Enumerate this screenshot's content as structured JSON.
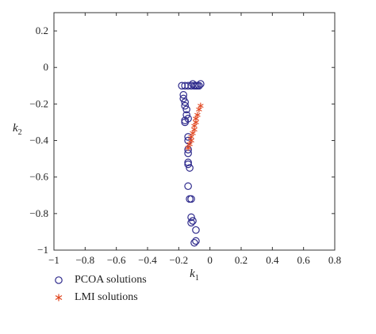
{
  "chart_data": {
    "type": "scatter",
    "xlabel_main": "k",
    "xlabel_sub": "1",
    "ylabel_main": "k",
    "ylabel_sub": "2",
    "xlim": [
      -1,
      0.8
    ],
    "ylim": [
      -1,
      0.3
    ],
    "x_ticks": [
      -1,
      -0.8,
      -0.6,
      -0.4,
      -0.2,
      0,
      0.2,
      0.4,
      0.6,
      0.8
    ],
    "x_tick_labels": [
      "−1",
      "−0.8",
      "−0.6",
      "−0.4",
      "−0.2",
      "0",
      "0.2",
      "0.4",
      "0.6",
      "0.8"
    ],
    "y_ticks": [
      0.2,
      0,
      -0.2,
      -0.4,
      -0.6,
      -0.8,
      -1
    ],
    "y_tick_labels": [
      "0.2",
      "0",
      "−0.2",
      "−0.4",
      "−0.6",
      "−0.8",
      "−1"
    ],
    "grid": false,
    "legend_position": "below",
    "series": [
      {
        "name": "PCOA solutions",
        "marker": "circle",
        "color": "#2e2a8c",
        "points": [
          [
            -0.18,
            -0.1
          ],
          [
            -0.16,
            -0.1
          ],
          [
            -0.14,
            -0.1
          ],
          [
            -0.12,
            -0.1
          ],
          [
            -0.11,
            -0.09
          ],
          [
            -0.1,
            -0.1
          ],
          [
            -0.09,
            -0.1
          ],
          [
            -0.08,
            -0.1
          ],
          [
            -0.07,
            -0.1
          ],
          [
            -0.06,
            -0.09
          ],
          [
            -0.17,
            -0.15
          ],
          [
            -0.17,
            -0.17
          ],
          [
            -0.16,
            -0.19
          ],
          [
            -0.16,
            -0.21
          ],
          [
            -0.15,
            -0.23
          ],
          [
            -0.15,
            -0.26
          ],
          [
            -0.14,
            -0.28
          ],
          [
            -0.16,
            -0.29
          ],
          [
            -0.16,
            -0.3
          ],
          [
            -0.14,
            -0.38
          ],
          [
            -0.14,
            -0.4
          ],
          [
            -0.14,
            -0.45
          ],
          [
            -0.14,
            -0.47
          ],
          [
            -0.14,
            -0.52
          ],
          [
            -0.14,
            -0.53
          ],
          [
            -0.13,
            -0.55
          ],
          [
            -0.14,
            -0.65
          ],
          [
            -0.13,
            -0.72
          ],
          [
            -0.12,
            -0.72
          ],
          [
            -0.12,
            -0.82
          ],
          [
            -0.11,
            -0.84
          ],
          [
            -0.12,
            -0.85
          ],
          [
            -0.09,
            -0.89
          ],
          [
            -0.09,
            -0.95
          ],
          [
            -0.1,
            -0.96
          ]
        ]
      },
      {
        "name": "LMI solutions",
        "marker": "star",
        "color": "#e0431c",
        "points": [
          [
            -0.06,
            -0.21
          ],
          [
            -0.07,
            -0.23
          ],
          [
            -0.08,
            -0.26
          ],
          [
            -0.09,
            -0.28
          ],
          [
            -0.09,
            -0.3
          ],
          [
            -0.1,
            -0.32
          ],
          [
            -0.1,
            -0.34
          ],
          [
            -0.11,
            -0.36
          ],
          [
            -0.12,
            -0.38
          ],
          [
            -0.12,
            -0.4
          ],
          [
            -0.13,
            -0.42
          ],
          [
            -0.14,
            -0.44
          ]
        ]
      }
    ]
  }
}
